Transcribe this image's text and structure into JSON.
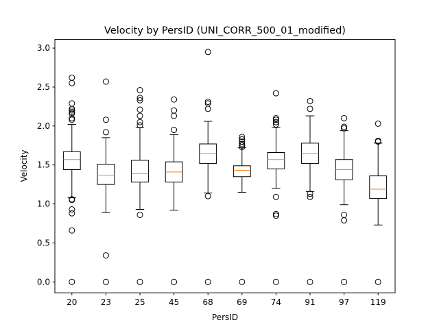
{
  "chart_data": {
    "type": "box",
    "title": "Velocity by PersID (UNI_CORR_500_01_modified)",
    "xlabel": "PersID",
    "ylabel": "Velocity",
    "ylim": [
      -0.14,
      3.11
    ],
    "yticks": [
      0.0,
      0.5,
      1.0,
      1.5,
      2.0,
      2.5,
      3.0
    ],
    "ytick_labels": [
      "0.0",
      "0.5",
      "1.0",
      "1.5",
      "2.0",
      "2.5",
      "3.0"
    ],
    "grid": false,
    "box_color": "#000000",
    "median_color": "#ff7f0e",
    "categories": [
      "20",
      "23",
      "25",
      "45",
      "68",
      "69",
      "74",
      "91",
      "97",
      "119"
    ],
    "boxes": [
      {
        "category": "20",
        "whisker_low": 1.08,
        "q1": 1.44,
        "median": 1.57,
        "q3": 1.67,
        "whisker_high": 2.02,
        "fliers": [
          0.0,
          0.66,
          0.88,
          0.93,
          1.05,
          1.06,
          2.08,
          2.1,
          2.16,
          2.18,
          2.2,
          2.22,
          2.29,
          2.55,
          2.62
        ]
      },
      {
        "category": "23",
        "whisker_low": 0.89,
        "q1": 1.25,
        "median": 1.37,
        "q3": 1.51,
        "whisker_high": 1.85,
        "fliers": [
          0.0,
          0.34,
          1.92,
          2.08,
          2.57
        ]
      },
      {
        "category": "25",
        "whisker_low": 0.93,
        "q1": 1.28,
        "median": 1.39,
        "q3": 1.56,
        "whisker_high": 1.98,
        "fliers": [
          0.0,
          0.86,
          2.01,
          2.05,
          2.13,
          2.21,
          2.33,
          2.36,
          2.46
        ]
      },
      {
        "category": "45",
        "whisker_low": 0.92,
        "q1": 1.28,
        "median": 1.41,
        "q3": 1.54,
        "whisker_high": 1.89,
        "fliers": [
          0.0,
          1.95,
          2.13,
          2.2,
          2.34
        ]
      },
      {
        "category": "68",
        "whisker_low": 1.14,
        "q1": 1.52,
        "median": 1.65,
        "q3": 1.77,
        "whisker_high": 2.06,
        "fliers": [
          0.0,
          1.1,
          2.22,
          2.29,
          2.31,
          2.95
        ]
      },
      {
        "category": "69",
        "whisker_low": 1.15,
        "q1": 1.35,
        "median": 1.43,
        "q3": 1.49,
        "whisker_high": 1.72,
        "fliers": [
          0.0,
          1.73,
          1.75,
          1.77,
          1.8,
          1.83,
          1.86
        ]
      },
      {
        "category": "74",
        "whisker_low": 1.2,
        "q1": 1.45,
        "median": 1.57,
        "q3": 1.66,
        "whisker_high": 1.98,
        "fliers": [
          0.0,
          0.85,
          0.87,
          1.09,
          2.02,
          2.05,
          2.08,
          2.1,
          2.42
        ]
      },
      {
        "category": "91",
        "whisker_low": 1.16,
        "q1": 1.52,
        "median": 1.65,
        "q3": 1.78,
        "whisker_high": 2.13,
        "fliers": [
          0.0,
          1.09,
          1.13,
          2.22,
          2.32
        ]
      },
      {
        "category": "97",
        "whisker_low": 0.99,
        "q1": 1.31,
        "median": 1.44,
        "q3": 1.57,
        "whisker_high": 1.94,
        "fliers": [
          0.0,
          0.79,
          0.86,
          1.97,
          1.99,
          2.1
        ]
      },
      {
        "category": "119",
        "whisker_low": 0.73,
        "q1": 1.07,
        "median": 1.19,
        "q3": 1.36,
        "whisker_high": 1.78,
        "fliers": [
          0.0,
          1.8,
          1.81,
          2.03
        ]
      }
    ]
  }
}
